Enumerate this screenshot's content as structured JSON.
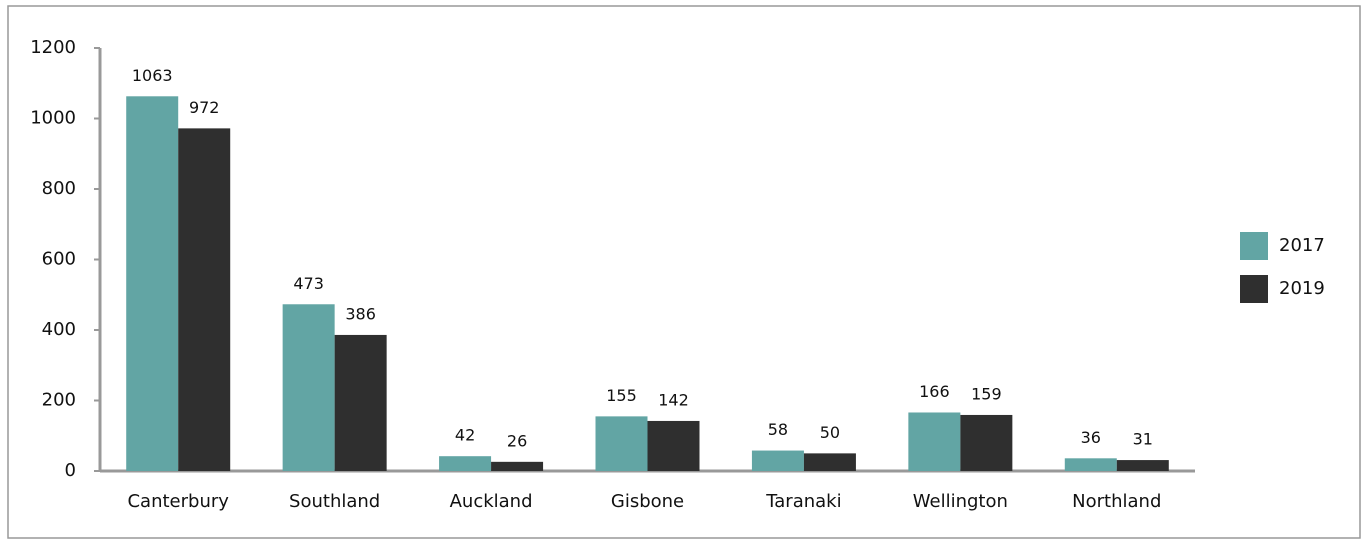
{
  "chart_data": {
    "type": "bar",
    "categories": [
      "Canterbury",
      "Southland",
      "Auckland",
      "Gisbone",
      "Taranaki",
      "Wellington",
      "Northland"
    ],
    "series": [
      {
        "name": "2017",
        "color": "#62a5a4",
        "values": [
          1063,
          473,
          42,
          155,
          58,
          166,
          36
        ]
      },
      {
        "name": "2019",
        "color": "#2f2f2f",
        "values": [
          972,
          386,
          26,
          142,
          50,
          159,
          31
        ]
      }
    ],
    "ylim": [
      0,
      1200
    ],
    "yticks": [
      0,
      200,
      400,
      600,
      800,
      1000,
      1200
    ],
    "legend": "right"
  }
}
